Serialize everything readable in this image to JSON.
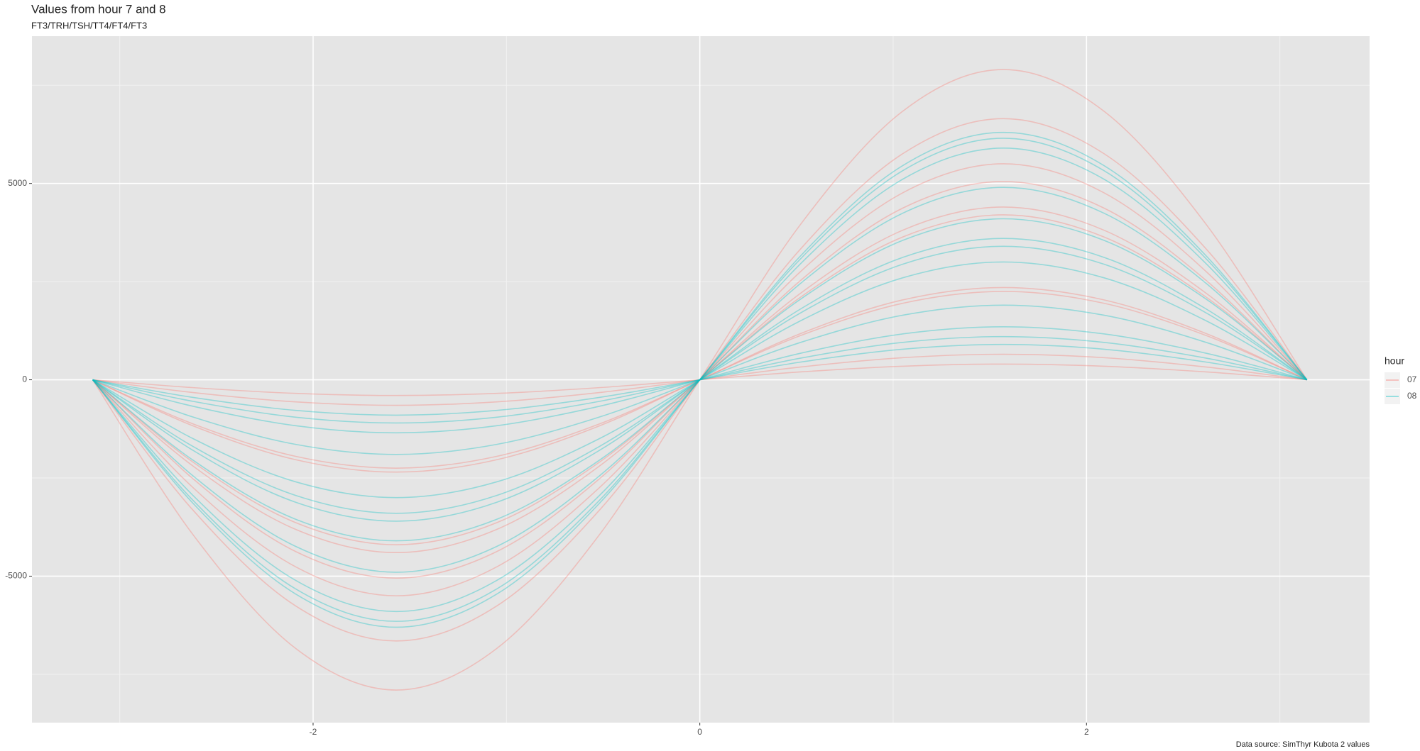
{
  "chart_data": {
    "type": "line",
    "title": "Values from hour 7 and 8",
    "subtitle": "FT3/TRH/TSH/TT4/FT4/FT3",
    "caption": "Data source: SimThyr Kubota 2 values",
    "legend_title": "hour",
    "legend_position": "right",
    "grid": true,
    "x": [
      -3.14,
      -2.62,
      -2.09,
      -1.57,
      -1.05,
      -0.52,
      0,
      0.52,
      1.05,
      1.57,
      2.09,
      2.62,
      3.14
    ],
    "xlim": [
      -3.454,
      3.464
    ],
    "xticks": [
      -2,
      0,
      2
    ],
    "ylim": [
      -8730,
      8750
    ],
    "yticks": [
      -5000,
      0,
      5000
    ],
    "series": [
      {
        "name": "07",
        "color": "#F8766D",
        "curves": [
          [
            0,
            -3950,
            -6841,
            -7900,
            -6841,
            -3950,
            0,
            3950,
            6841,
            7900,
            6841,
            3950,
            0
          ],
          [
            0,
            -3325,
            -5759,
            -6650,
            -5759,
            -3325,
            0,
            3325,
            5759,
            6650,
            5759,
            3325,
            0
          ],
          [
            0,
            -2750,
            -4763,
            -5500,
            -4763,
            -2750,
            0,
            2750,
            4763,
            5500,
            4763,
            2750,
            0
          ],
          [
            0,
            -2525,
            -4373,
            -5050,
            -4373,
            -2525,
            0,
            2525,
            4373,
            5050,
            4373,
            2525,
            0
          ],
          [
            0,
            -2200,
            -3810,
            -4400,
            -3810,
            -2200,
            0,
            2200,
            3810,
            4400,
            3810,
            2200,
            0
          ],
          [
            0,
            -2100,
            -3637,
            -4200,
            -3637,
            -2100,
            0,
            2100,
            3637,
            4200,
            3637,
            2100,
            0
          ],
          [
            0,
            -1175,
            -2035,
            -2350,
            -2035,
            -1175,
            0,
            1175,
            2035,
            2350,
            2035,
            1175,
            0
          ],
          [
            0,
            -1125,
            -1949,
            -2250,
            -1949,
            -1125,
            0,
            1125,
            1949,
            2250,
            1949,
            1125,
            0
          ],
          [
            0,
            -325,
            -563,
            -650,
            -563,
            -325,
            0,
            325,
            563,
            650,
            563,
            325,
            0
          ],
          [
            0,
            -200,
            -346,
            -400,
            -346,
            -200,
            0,
            200,
            346,
            400,
            346,
            200,
            0
          ]
        ]
      },
      {
        "name": "08",
        "color": "#00BFC4",
        "curves": [
          [
            0,
            -3150,
            -5456,
            -6300,
            -5456,
            -3150,
            0,
            3150,
            5456,
            6300,
            5456,
            3150,
            0
          ],
          [
            0,
            -3075,
            -5326,
            -6150,
            -5326,
            -3075,
            0,
            3075,
            5326,
            6150,
            5326,
            3075,
            0
          ],
          [
            0,
            -2950,
            -5109,
            -5900,
            -5109,
            -2950,
            0,
            2950,
            5109,
            5900,
            5109,
            2950,
            0
          ],
          [
            0,
            -2450,
            -4243,
            -4900,
            -4243,
            -2450,
            0,
            2450,
            4243,
            4900,
            4243,
            2450,
            0
          ],
          [
            0,
            -2050,
            -3551,
            -4100,
            -3551,
            -2050,
            0,
            2050,
            3551,
            4100,
            3551,
            2050,
            0
          ],
          [
            0,
            -1800,
            -3118,
            -3600,
            -3118,
            -1800,
            0,
            1800,
            3118,
            3600,
            3118,
            1800,
            0
          ],
          [
            0,
            -1700,
            -2944,
            -3400,
            -2944,
            -1700,
            0,
            1700,
            2944,
            3400,
            2944,
            1700,
            0
          ],
          [
            0,
            -1500,
            -2598,
            -3000,
            -2598,
            -1500,
            0,
            1500,
            2598,
            3000,
            2598,
            1500,
            0
          ],
          [
            0,
            -950,
            -1645,
            -1900,
            -1645,
            -950,
            0,
            950,
            1645,
            1900,
            1645,
            950,
            0
          ],
          [
            0,
            -675,
            -1169,
            -1350,
            -1169,
            -675,
            0,
            675,
            1169,
            1350,
            1169,
            675,
            0
          ],
          [
            0,
            -550,
            -953,
            -1100,
            -953,
            -550,
            0,
            550,
            953,
            1100,
            953,
            550,
            0
          ],
          [
            0,
            -450,
            -779,
            -900,
            -779,
            -450,
            0,
            450,
            779,
            900,
            779,
            450,
            0
          ]
        ]
      }
    ]
  }
}
